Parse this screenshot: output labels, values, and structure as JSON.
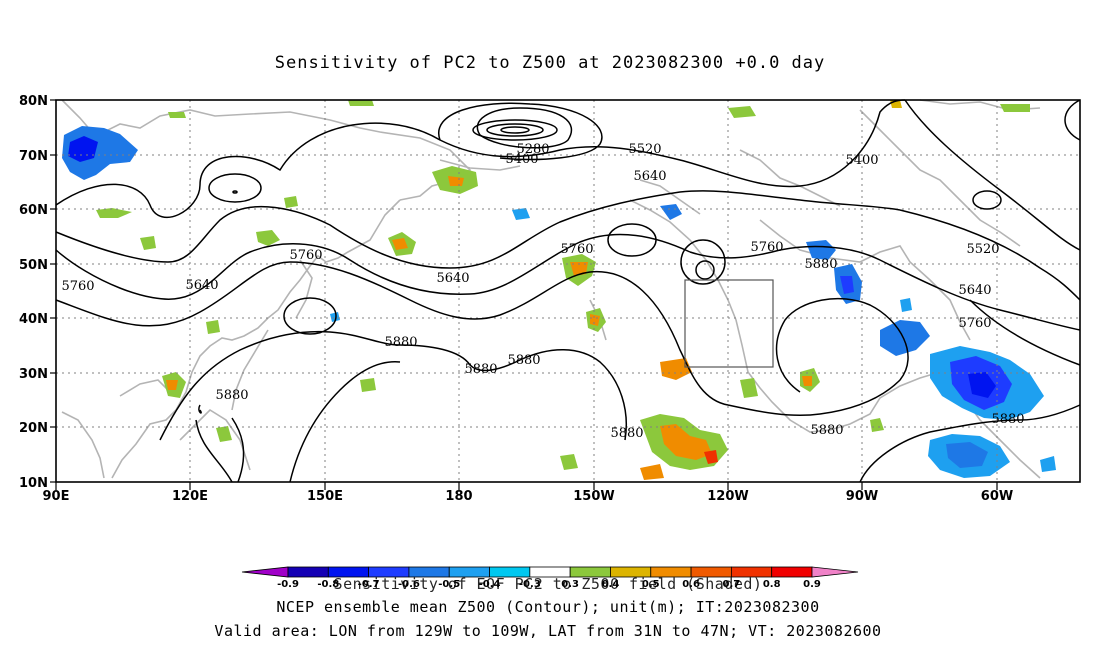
{
  "title": "Sensitivity of PC2 to Z500 at 2023082300 +0.0 day",
  "axes": {
    "lon_labels": [
      "90E",
      "120E",
      "150E",
      "180",
      "150W",
      "120W",
      "90W",
      "60W"
    ],
    "lat_labels": [
      "80N",
      "70N",
      "60N",
      "50N",
      "40N",
      "30N",
      "20N",
      "10N"
    ],
    "lon_range": [
      "90E",
      "50W"
    ],
    "lat_range": [
      10,
      80
    ],
    "grid": true
  },
  "valid_box": {
    "lon": [
      "129W",
      "109W"
    ],
    "lat": [
      "31N",
      "47N"
    ]
  },
  "contour_labels": [
    "5280",
    "5400",
    "5520",
    "5640",
    "5400",
    "5760",
    "5640",
    "5520",
    "5640",
    "5760",
    "5880",
    "5760",
    "5640",
    "5760",
    "5880",
    "5880",
    "5880",
    "5880",
    "5880",
    "5880",
    "5760",
    "5880"
  ],
  "colorbar": {
    "values": [
      "-0.9",
      "-0.8",
      "-0.7",
      "-0.6",
      "-0.5",
      "-0.4",
      "-0.3",
      "0.3",
      "0.4",
      "0.5",
      "0.6",
      "0.7",
      "0.8",
      "0.9"
    ],
    "colors": [
      "#a000c8",
      "#1400b4",
      "#0014f0",
      "#1e3cff",
      "#1e78e6",
      "#1ea0f0",
      "#00c8f0",
      "#ffffff",
      "#8cc83c",
      "#dcb400",
      "#f08c00",
      "#f05a00",
      "#f03200",
      "#f00000",
      "#f082c8"
    ]
  },
  "footer": {
    "line1": "Sensitivity of EOF PC2 to Z500 field (Shaded)",
    "line2": "NCEP ensemble mean Z500 (Contour); unit(m); IT:2023082300",
    "line3": "Valid area: LON from 129W to 109W, LAT from 31N to 47N; VT: 2023082600"
  }
}
